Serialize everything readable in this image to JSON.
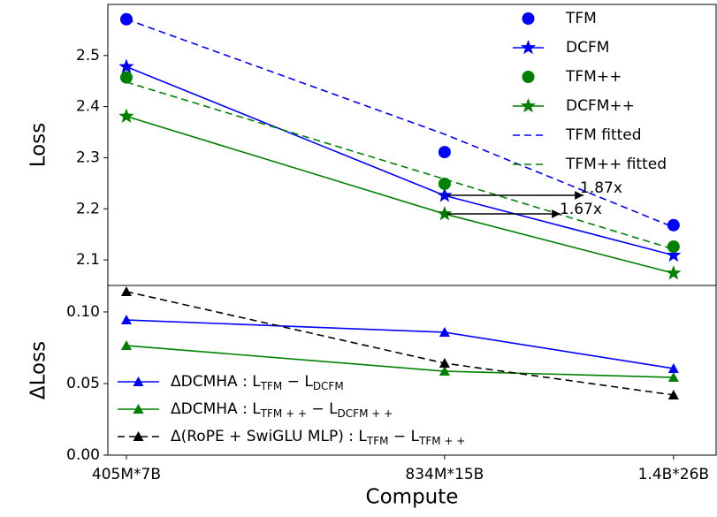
{
  "chart_data": [
    {
      "type": "line",
      "ylabel": "Loss",
      "xscale": "log",
      "x": [
        2.835e+18,
        1.251e+19,
        3.64e+19
      ],
      "xlim": [
        2.6e+18,
        4.44e+19
      ],
      "ylim": [
        2.05,
        2.6
      ],
      "yticks": [
        2.1,
        2.2,
        2.3,
        2.4,
        2.5
      ],
      "legend": "upper right",
      "series": [
        {
          "name": "TFM",
          "color": "#0000ff",
          "marker": "circle",
          "linestyle": "none",
          "values": [
            2.571,
            2.311,
            2.168
          ]
        },
        {
          "name": "DCFM",
          "color": "#0000ff",
          "marker": "star",
          "linestyle": "solid",
          "values": [
            2.478,
            2.226,
            2.109
          ]
        },
        {
          "name": "TFM++",
          "color": "#008000",
          "marker": "circle",
          "linestyle": "none",
          "values": [
            2.457,
            2.249,
            2.126
          ]
        },
        {
          "name": "DCFM++",
          "color": "#008000",
          "marker": "star",
          "linestyle": "solid",
          "values": [
            2.381,
            2.19,
            2.074
          ]
        },
        {
          "name": "TFM fitted",
          "color": "#0000ff",
          "marker": "none",
          "linestyle": "dashed",
          "values": [
            2.571,
            2.346,
            2.164
          ]
        },
        {
          "name": "TFM++ fitted",
          "color": "#008000",
          "marker": "none",
          "linestyle": "dashed",
          "values": [
            2.448,
            2.258,
            2.121
          ]
        }
      ],
      "annotations": [
        {
          "text": "1.87x"
        },
        {
          "text": "1.67x"
        }
      ]
    },
    {
      "type": "line",
      "ylabel": "ΔLoss",
      "xlabel": "Compute",
      "xscale": "log",
      "x": [
        2.835e+18,
        1.251e+19,
        3.64e+19
      ],
      "xlim": [
        2.6e+18,
        4.44e+19
      ],
      "xticks": [
        {
          "value": 2.835e+18,
          "label": "405M*7B"
        },
        {
          "value": 1.251e+19,
          "label": "834M*15B"
        },
        {
          "value": 3.64e+19,
          "label": "1.4B*26B"
        }
      ],
      "ylim": [
        0,
        0.1185
      ],
      "yticks": [
        {
          "value": 0,
          "label": "0.00"
        },
        {
          "value": 0.05,
          "label": "0.05"
        },
        {
          "value": 0.1,
          "label": "0.10"
        }
      ],
      "legend": "lower left",
      "series": [
        {
          "name": [
            "ΔDCMHA : L",
            "TFM",
            " − L",
            "DCFM"
          ],
          "color": "#0000ff",
          "marker": "triangle",
          "linestyle": "solid",
          "values": [
            0.0944,
            0.0858,
            0.0605
          ]
        },
        {
          "name": [
            "ΔDCMHA : L",
            "TFM + +",
            " − L",
            "DCFM + +"
          ],
          "color": "#008000",
          "marker": "triangle",
          "linestyle": "solid",
          "values": [
            0.0765,
            0.0586,
            0.0543
          ]
        },
        {
          "name": [
            "Δ(RoPE + SwiGLU MLP) : L",
            "TFM",
            " − L",
            "TFM + +"
          ],
          "color": "#000000",
          "marker": "triangle",
          "linestyle": "dashed",
          "values": [
            0.1142,
            0.0642,
            0.042
          ]
        }
      ]
    }
  ]
}
